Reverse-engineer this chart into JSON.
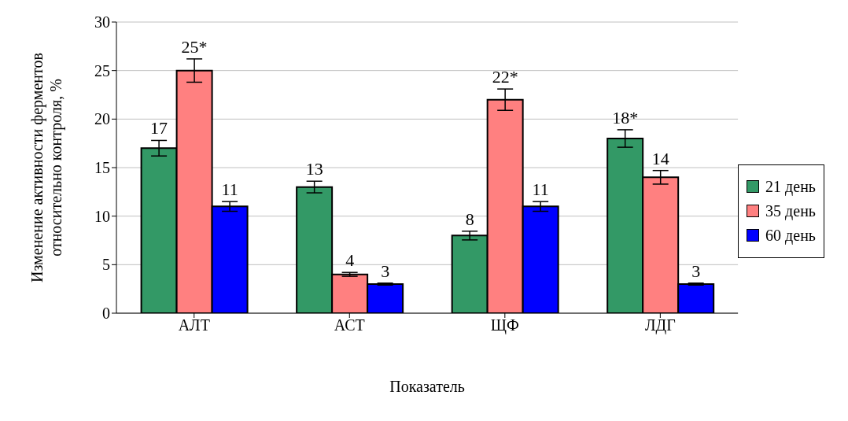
{
  "chart_data": {
    "type": "bar",
    "xlabel": "Показатель",
    "ylabel": "Изменение активности ферментов\nотносительно контроля, %",
    "categories": [
      "АЛТ",
      "АСТ",
      "ЩФ",
      "ЛДГ"
    ],
    "series": [
      {
        "name": "21 день",
        "color": "#339966",
        "values": [
          17,
          13,
          8,
          18
        ],
        "errors": [
          0.8,
          0.6,
          0.45,
          0.9
        ],
        "value_labels": [
          "17",
          "13",
          "8",
          "18*"
        ]
      },
      {
        "name": "35 день",
        "color": "#ff8080",
        "values": [
          25,
          4,
          22,
          14
        ],
        "errors": [
          1.2,
          0.2,
          1.1,
          0.7
        ],
        "value_labels": [
          "25*",
          "4",
          "22*",
          "14"
        ]
      },
      {
        "name": "60 день",
        "color": "#0000ff",
        "values": [
          11,
          3,
          11,
          3
        ],
        "errors": [
          0.5,
          0.1,
          0.5,
          0.1
        ],
        "value_labels": [
          "11",
          "3",
          "11",
          "3"
        ]
      }
    ],
    "ylim": [
      0,
      30
    ],
    "yticks": [
      0,
      5,
      10,
      15,
      20,
      25,
      30
    ],
    "grid": "y",
    "legend": "right"
  }
}
